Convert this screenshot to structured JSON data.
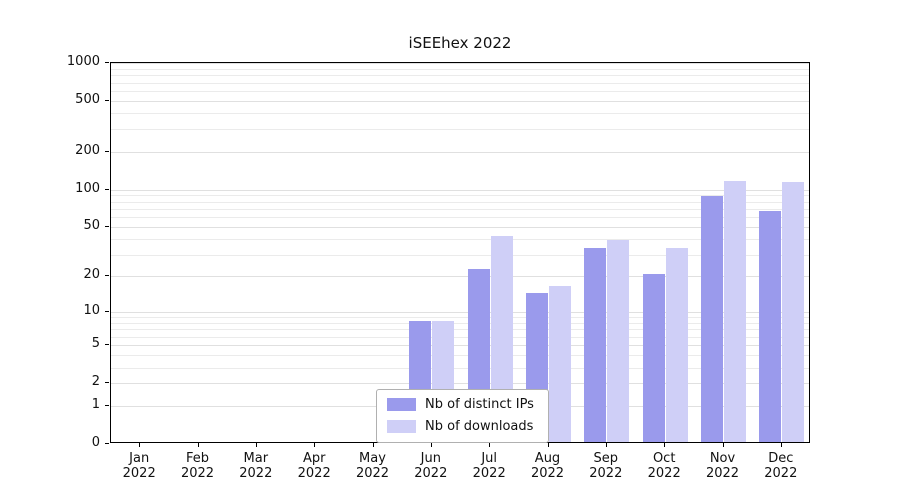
{
  "chart_data": {
    "type": "bar",
    "title": "iSEEhex 2022",
    "year": "2022",
    "categories": [
      "Jan",
      "Feb",
      "Mar",
      "Apr",
      "May",
      "Jun",
      "Jul",
      "Aug",
      "Sep",
      "Oct",
      "Nov",
      "Dec"
    ],
    "series": [
      {
        "name": "Nb of distinct IPs",
        "color": "#9a9aec",
        "values": [
          0,
          0,
          0,
          0,
          0,
          8,
          22,
          14,
          33,
          20,
          85,
          65
        ]
      },
      {
        "name": "Nb of downloads",
        "color": "#cfcff7",
        "values": [
          0,
          0,
          0,
          0,
          0,
          8,
          41,
          16,
          38,
          33,
          113,
          110
        ]
      }
    ],
    "y_ticks": [
      0,
      1,
      2,
      5,
      10,
      20,
      50,
      100,
      200,
      500,
      1000
    ],
    "y_scale": "log10(v+1)",
    "ylim": [
      0,
      1000
    ],
    "grid": true,
    "legend_position": "bottom-center",
    "xlabel": "",
    "ylabel": ""
  }
}
